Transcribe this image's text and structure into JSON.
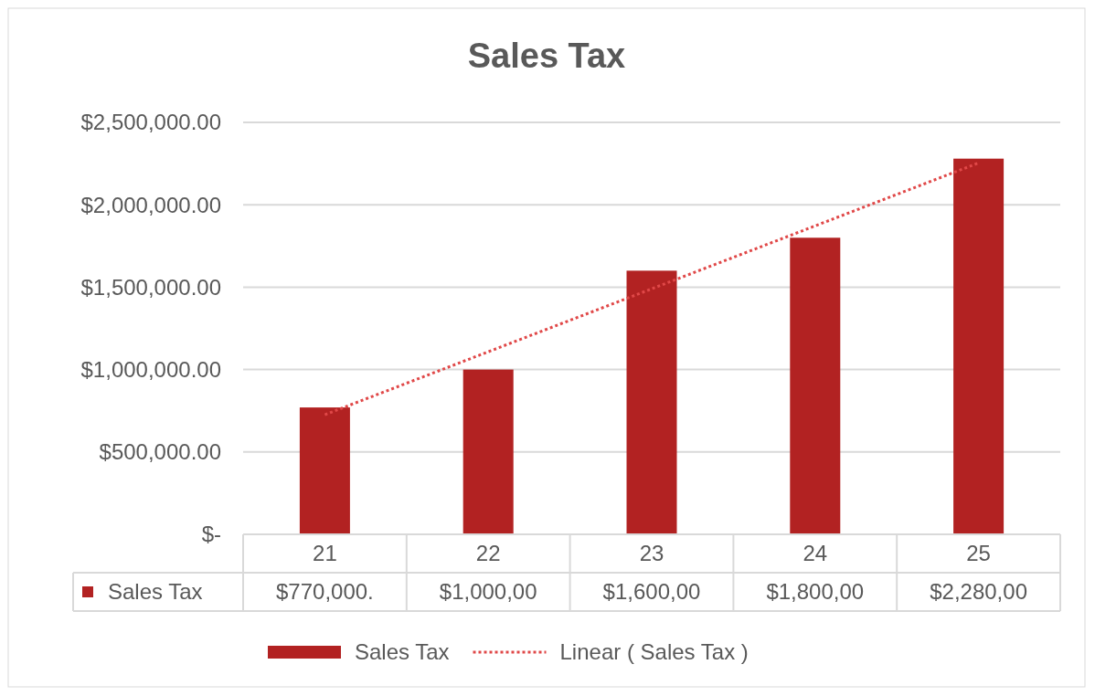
{
  "chart_data": {
    "type": "bar",
    "title": "Sales Tax",
    "categories": [
      "21",
      "22",
      "23",
      "24",
      "25"
    ],
    "series": [
      {
        "name": "Sales Tax",
        "color": "#b22222",
        "values": [
          770000,
          1000000,
          1600000,
          1800000,
          2280000
        ],
        "value_labels": [
          "$770,000.",
          "$1,000,00",
          "$1,600,00",
          "$1,800,00",
          "$2,280,00"
        ]
      },
      {
        "name": "Linear ( Sales Tax )",
        "type": "line",
        "color": "#e04848",
        "line_style": "dotted",
        "marker": "none",
        "values": [
          726000,
          1108000,
          1490000,
          1872000,
          2254000
        ]
      }
    ],
    "ylim": [
      0,
      2500000
    ],
    "yticks": [
      {
        "value": 0,
        "label": "$-"
      },
      {
        "value": 500000,
        "label": "$500,000.00"
      },
      {
        "value": 1000000,
        "label": "$1,000,000.00"
      },
      {
        "value": 1500000,
        "label": "$1,500,000.00"
      },
      {
        "value": 2000000,
        "label": "$2,000,000.00"
      },
      {
        "value": 2500000,
        "label": "$2,500,000.00"
      }
    ],
    "grid": "y",
    "legend": "bottom"
  }
}
